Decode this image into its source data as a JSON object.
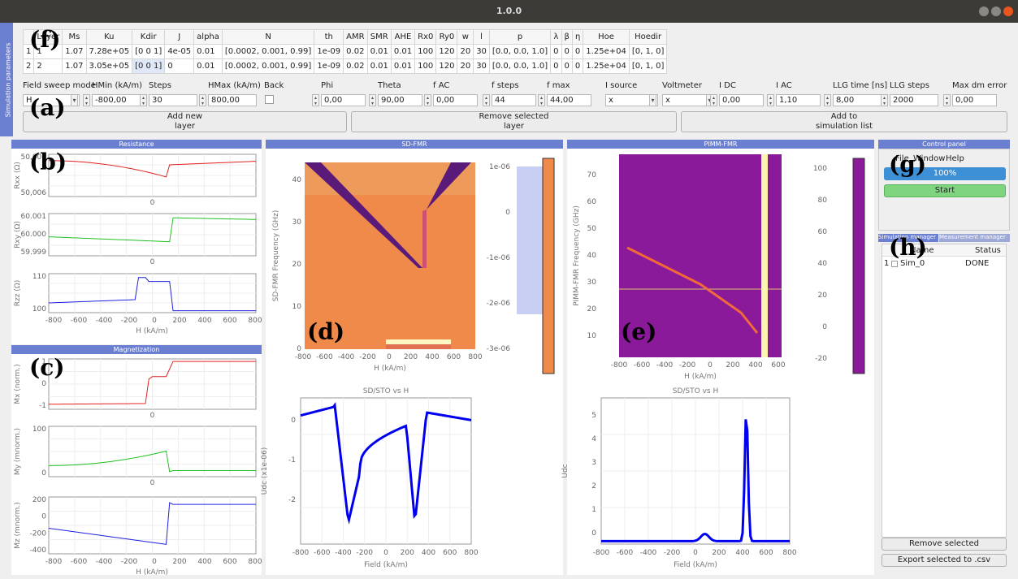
{
  "window": {
    "title": "1.0.0"
  },
  "sim_params_label": "Simulation parameters",
  "layer_table": {
    "columns": [
      "Layer",
      "Ms",
      "Ku",
      "Kdir",
      "J",
      "alpha",
      "N",
      "th",
      "AMR",
      "SMR",
      "AHE",
      "Rx0",
      "Ry0",
      "w",
      "l",
      "p",
      "λ",
      "β",
      "η",
      "Hoe",
      "Hoedir"
    ],
    "rows": [
      [
        "1",
        "1",
        "1.07",
        "7.28e+05",
        "[0 0 1]",
        "4e-05",
        "0.01",
        "[0.0002, 0.001, 0.99]",
        "1e-09",
        "0.02",
        "0.01",
        "0.01",
        "100",
        "120",
        "20",
        "30",
        "[0.0, 0.0, 1.0]",
        "0",
        "0",
        "0",
        "1.25e+04",
        "[0, 1, 0]"
      ],
      [
        "2",
        "2",
        "1.07",
        "3.05e+05",
        "[0 0 1]",
        "0",
        "0.01",
        "[0.0002, 0.001, 0.99]",
        "1e-09",
        "0.02",
        "0.01",
        "0.01",
        "100",
        "120",
        "20",
        "30",
        "[0.0, 0.0, 1.0]",
        "0",
        "0",
        "0",
        "1.25e+04",
        "[0, 1, 0]"
      ]
    ]
  },
  "controls": {
    "field_sweep_mode": {
      "label": "Field sweep mode",
      "value": "H"
    },
    "hmin": {
      "label": "HMin (kA/m)",
      "value": "-800,00"
    },
    "steps": {
      "label": "Steps",
      "value": "30"
    },
    "hmax": {
      "label": "HMax (kA/m)",
      "value": "800,00"
    },
    "back": {
      "label": "Back"
    },
    "phi": {
      "label": "Phi",
      "value": "0,00"
    },
    "theta": {
      "label": "Theta",
      "value": "90,00"
    },
    "fac": {
      "label": "f AC",
      "value": "0,00"
    },
    "fsteps": {
      "label": "f steps",
      "value": "44"
    },
    "fmax": {
      "label": "f max",
      "value": "44,00"
    },
    "isource": {
      "label": "I source",
      "value": "x"
    },
    "voltmeter": {
      "label": "Voltmeter",
      "value": "x"
    },
    "idc": {
      "label": "I DC",
      "value": "0,00"
    },
    "iac": {
      "label": "I AC",
      "value": "1,10"
    },
    "llg_time": {
      "label": "LLG time [ns]",
      "value": "8,00"
    },
    "llg_steps": {
      "label": "LLG steps",
      "value": "2000"
    },
    "max_dm": {
      "label": "Max dm error",
      "value": "0,00"
    }
  },
  "buttons": {
    "add_layer": "Add new\nlayer",
    "remove_layer": "Remove selected\nlayer",
    "add_sim": "Add to\nsimulation list",
    "remove_selected": "Remove selected",
    "export_csv": "Export selected to .csv",
    "start": "Start"
  },
  "panels": {
    "resistance": "Resistance",
    "magnetization": "Magnetization",
    "sdfmr": "SD-FMR",
    "pimm": "PIMM-FMR",
    "control": "Control panel"
  },
  "control_panel": {
    "menu": [
      "File",
      "Window",
      "Help"
    ],
    "progress": "100%",
    "progress_value": 1.0
  },
  "tabs": {
    "sim_manager": "Simulation manager",
    "meas_manager": "Measurement manager"
  },
  "sim_list": {
    "headers": [
      "Name",
      "Status"
    ],
    "rows": [
      {
        "index": "1",
        "name": "Sim_0",
        "status": "DONE"
      }
    ]
  },
  "markers": [
    "(f)",
    "(a)",
    "(b)",
    "(c)",
    "(d)",
    "(e)",
    "(g)",
    "(h)"
  ],
  "plots": {
    "rxx": {
      "ylabel": "Rxx (Ω)",
      "yticks": [
        "50,008",
        "50,006"
      ],
      "zero": "0"
    },
    "rxy": {
      "ylabel": "Rxy (Ω)",
      "yticks": [
        "60.001",
        "60.000",
        "59.999"
      ],
      "zero": "0"
    },
    "rzz": {
      "ylabel": "Rzz (Ω)",
      "yticks": [
        "110",
        "100"
      ]
    },
    "mx": {
      "ylabel": "Mx (norm.)",
      "yticks": [
        "1",
        "0",
        "-1"
      ],
      "zero": "0"
    },
    "my": {
      "ylabel": "My (mnorm.)",
      "yticks": [
        "100",
        "0"
      ],
      "zero": "0"
    },
    "mz": {
      "ylabel": "Mz (mnorm.)",
      "yticks": [
        "200",
        "0",
        "-200",
        "-400"
      ]
    },
    "hxticks": [
      "-800",
      "-600",
      "-400",
      "-200",
      "0",
      "200",
      "400",
      "600",
      "800"
    ],
    "hlabel": "H (kA/m)",
    "sdfmr_map": {
      "ylabel": "SD-FMR Frequency (GHz)",
      "yticks": [
        "40",
        "30",
        "20",
        "10",
        "0"
      ],
      "xticks": [
        "-800",
        "-600",
        "-400",
        "-200",
        "0",
        "200",
        "400",
        "600",
        "800"
      ],
      "xlabel": "H (kA/m)",
      "cbar": [
        "1e-06",
        "0",
        "-1e-06",
        "-2e-06",
        "-3e-06"
      ]
    },
    "pimm_map": {
      "ylabel": "PIMM-FMR Frequency (GHz)",
      "yticks": [
        "70",
        "60",
        "50",
        "40",
        "30",
        "20",
        "10"
      ],
      "xticks": [
        "-800",
        "-600",
        "-400",
        "-200",
        "0",
        "200",
        "400",
        "600"
      ],
      "xlabel": "H (kA/m)",
      "cbar": [
        "100",
        "80",
        "60",
        "40",
        "20",
        "0",
        "-20"
      ]
    },
    "sd_line": {
      "title": "SD/STO vs H",
      "ylabel": "Udc (x1e-06)",
      "yticks": [
        "0",
        "-1",
        "-2"
      ],
      "xticks": [
        "-800",
        "-600",
        "-400",
        "-200",
        "0",
        "200",
        "400",
        "600",
        "800"
      ],
      "xlabel": "Field (kA/m)"
    },
    "pimm_line": {
      "title": "SD/STO vs H",
      "ylabel": "Udc",
      "yticks": [
        "5",
        "4",
        "3",
        "2",
        "1",
        "0"
      ],
      "xticks": [
        "-800",
        "-600",
        "-400",
        "-200",
        "0",
        "200",
        "400",
        "600",
        "800"
      ],
      "xlabel": "Field (kA/m)"
    }
  },
  "colors": {
    "accent": "#6b7fd1",
    "progress": "#3d8fd6",
    "start": "#7fd47f"
  }
}
